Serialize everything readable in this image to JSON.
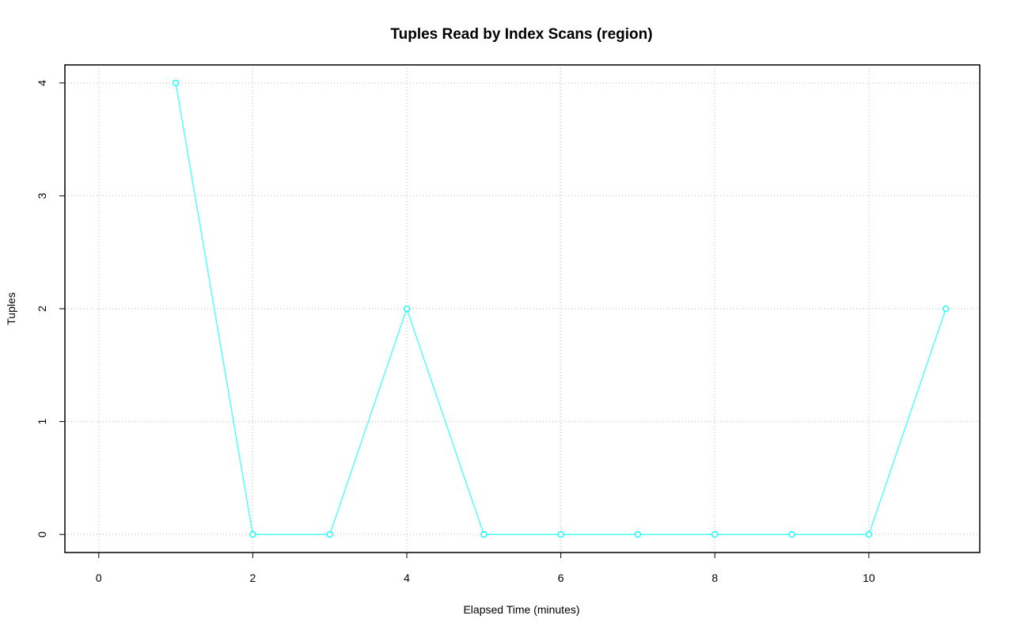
{
  "chart_data": {
    "type": "line",
    "title": "Tuples Read by Index Scans (region)",
    "x_label": "Elapsed Time (minutes)",
    "y_label": "Tuples",
    "x": [
      1,
      2,
      3,
      4,
      5,
      6,
      7,
      8,
      9,
      10,
      11
    ],
    "series": [
      {
        "color": "#00ffff",
        "values": [
          4,
          0,
          0,
          2,
          0,
          0,
          0,
          0,
          0,
          0,
          2
        ]
      }
    ],
    "xlim": [
      -0.44,
      11.44
    ],
    "xticks": [
      0,
      2,
      4,
      6,
      8,
      10
    ],
    "ylim": [
      -0.16,
      4.16
    ],
    "yticks": [
      0,
      1,
      2,
      3,
      4
    ],
    "grid": true
  }
}
